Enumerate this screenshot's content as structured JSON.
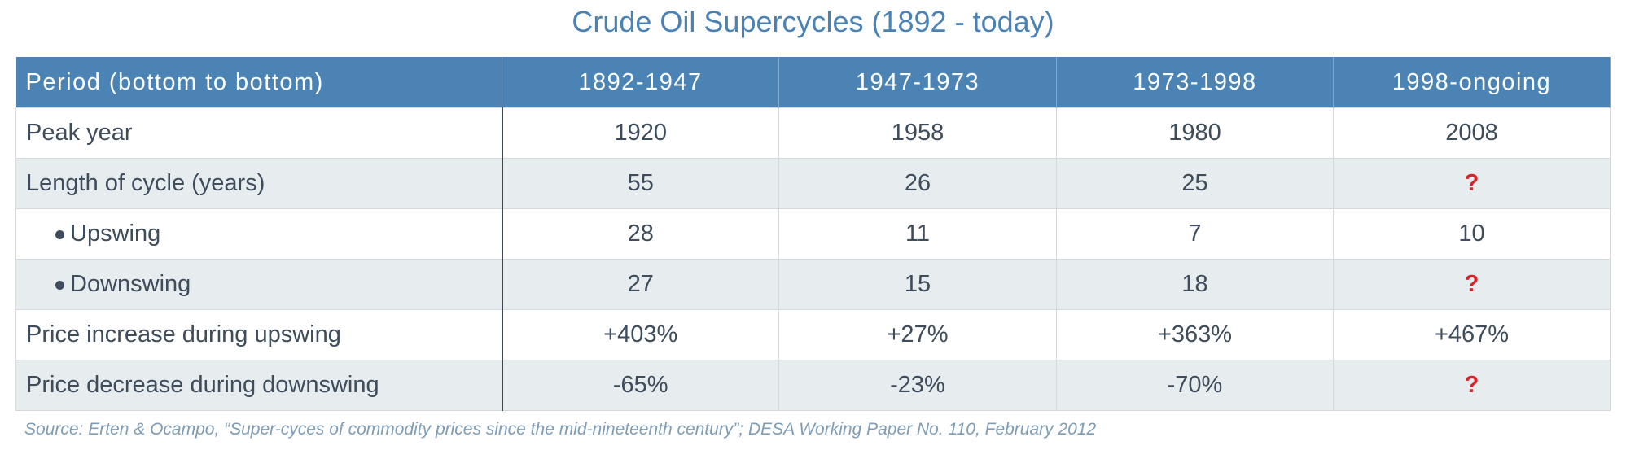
{
  "title": "Crude Oil Supercycles (1892 - today)",
  "table": {
    "header": [
      "Period (bottom to bottom)",
      "1892-1947",
      "1947-1973",
      "1973-1998",
      "1998-ongoing"
    ],
    "rows": [
      [
        "Peak year",
        "1920",
        "1958",
        "1980",
        "2008"
      ],
      [
        "Length of cycle (years)",
        "55",
        "26",
        "25",
        "?"
      ],
      [
        "Upswing",
        "28",
        "11",
        "7",
        "10"
      ],
      [
        "Downswing",
        "27",
        "15",
        "18",
        "?"
      ],
      [
        "Price increase during upswing",
        "+403%",
        "+27%",
        "+363%",
        "+467%"
      ],
      [
        "Price decrease during downswing",
        "-65%",
        "-23%",
        "-70%",
        "?"
      ]
    ]
  },
  "source": "Source: Erten & Ocampo, “Super-cyces of commodity prices since the mid-nineteenth century”; DESA Working Paper No. 110, February 2012"
}
